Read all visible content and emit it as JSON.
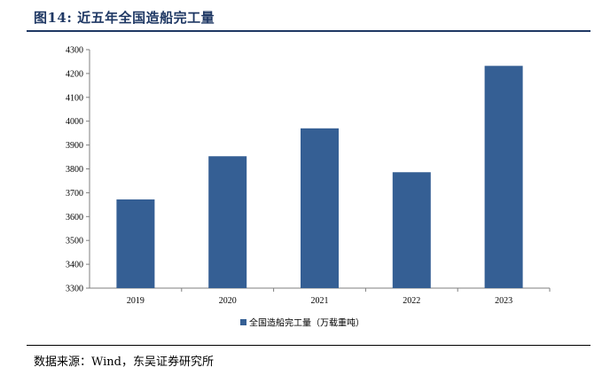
{
  "figure": {
    "title": "图14:  近五年全国造船完工量",
    "source": "数据来源：Wind，东吴证券研究所"
  },
  "chart_data": {
    "type": "bar",
    "title": "",
    "xlabel": "",
    "ylabel": "",
    "categories": [
      "2019",
      "2020",
      "2021",
      "2022",
      "2023"
    ],
    "series": [
      {
        "name": "全国造船完工量（万载重吨）",
        "values": [
          3672,
          3853,
          3970,
          3786,
          4232
        ],
        "color": "#355f94"
      }
    ],
    "ylim": [
      3300,
      4300
    ],
    "yticks": [
      3300,
      3400,
      3500,
      3600,
      3700,
      3800,
      3900,
      4000,
      4100,
      4200,
      4300
    ],
    "grid": false,
    "legend_position": "bottom-center"
  }
}
